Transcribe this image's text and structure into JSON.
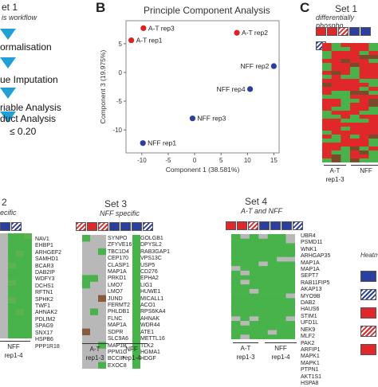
{
  "panel_a": {
    "title": "et 1",
    "subtitle": "is workflow",
    "steps": [
      "ormalisation",
      "ue Imputation",
      "riable Analysis",
      "duct Analysis",
      "≤ 0.20"
    ]
  },
  "panel_b": {
    "label": "B",
    "title": "Principle Component Analysis",
    "chart_data": {
      "type": "scatter",
      "title": "Principle Component Analysis",
      "xlabel": "Component 1 (38.581%)",
      "ylabel": "Component 3 (19.975%)",
      "xlim": [
        -13,
        16
      ],
      "ylim": [
        -14,
        9
      ],
      "xticks": [
        -10,
        -5,
        0,
        5,
        10,
        15
      ],
      "yticks": [
        -10,
        -5,
        0,
        5
      ],
      "points": [
        {
          "label": "A-T rep3",
          "x": -9.7,
          "y": 7.7,
          "color": "#e02020"
        },
        {
          "label": "A-T rep2",
          "x": 8.0,
          "y": 6.9,
          "color": "#e02020"
        },
        {
          "label": "A-T rep1",
          "x": -12.0,
          "y": 5.6,
          "color": "#e02020"
        },
        {
          "label": "NFF rep2",
          "x": 15.0,
          "y": 1.1,
          "color": "#2a3fa0"
        },
        {
          "label": "NFF rep4",
          "x": 10.5,
          "y": -2.9,
          "color": "#2a3fa0"
        },
        {
          "label": "NFF rep3",
          "x": -0.4,
          "y": -8.0,
          "color": "#2a3fa0"
        },
        {
          "label": "NFF rep1",
          "x": -9.8,
          "y": -12.3,
          "color": "#2a3fa0"
        }
      ]
    }
  },
  "panel_c": {
    "label": "C",
    "title": "Set 1",
    "subtitle": "differentially phospho",
    "group_labels": [
      {
        "name": "A-T",
        "reps": "rep1-3"
      },
      {
        "name": "NFF",
        "reps": ""
      }
    ]
  },
  "set2": {
    "title": "2",
    "subtitle": "ecific",
    "genes": [
      "NAV1",
      "EHBP1",
      "ARHGEF2",
      "SAMHD1",
      "BCAR3",
      "DAB2IP",
      "WDFY3",
      "DCHS1",
      "RFTN1",
      "SPHK2",
      "TWF1",
      "AHNAK2",
      "PDLIM2",
      "SPAG9",
      "SNX17",
      "HSPB6",
      "PPP1R18"
    ],
    "bottom": {
      "name": "NFF",
      "reps": "rep1-4"
    }
  },
  "set3": {
    "title": "Set 3",
    "subtitle": "NFF specific",
    "genes_left": [
      "SYNPO",
      "ZFYVE16",
      "TBC1D4",
      "CEP170",
      "CLASP1",
      "MAP1A",
      "PRKD1",
      "LMO7",
      "LMO7",
      "JUND",
      "FERMT2",
      "PHLDB1",
      "FLNC",
      "MAP1A",
      "SDPR",
      "SLC9A6",
      "MAP1B",
      "PPM1G",
      "BCCIP",
      "EXOC8"
    ],
    "genes_right": [
      "GOLGB1",
      "DPYSL2",
      "RAB3GAP1",
      "VPS13C",
      "USP5",
      "CD276",
      "EPHA2",
      "LIG1",
      "HUWE1",
      "MICALL1",
      "ACO1",
      "RPS6KA4",
      "AHNAK",
      "WDR44",
      "ATE1",
      "METTL16",
      "TLK2",
      "HGMA1",
      "HDGF"
    ],
    "groups": [
      {
        "name": "A-T",
        "reps": "rep1-3"
      },
      {
        "name": "NFF",
        "reps": "rep1-4"
      }
    ]
  },
  "set4": {
    "title": "Set 4",
    "subtitle": "A-T and NFF",
    "genes": [
      "UBR4",
      "PSMD11",
      "WNK1",
      "ARHGAP35",
      "MAP1A",
      "MAP1A",
      "SEPT7",
      "RAB11FIP5",
      "AKAP13",
      "MYO9B",
      "DAB2",
      "HAUS6",
      "STIM1",
      "UFD1L",
      "NEK9",
      "MLF2",
      "PAK2",
      "ARFIP1",
      "MAPK1",
      "MAPK1",
      "PTPN1",
      "AKT1S1",
      "HSPA8"
    ],
    "groups": [
      {
        "name": "A-T",
        "reps": "rep1-3"
      },
      {
        "name": "NFF",
        "reps": "rep1-4"
      }
    ]
  },
  "legend": {
    "title": "Heatm"
  },
  "colors": {
    "red": "#e0282a",
    "green": "#47b34a",
    "blue": "#2a3fa0",
    "grey": "#b8b8b8",
    "arrow": "#1fa0d6"
  }
}
